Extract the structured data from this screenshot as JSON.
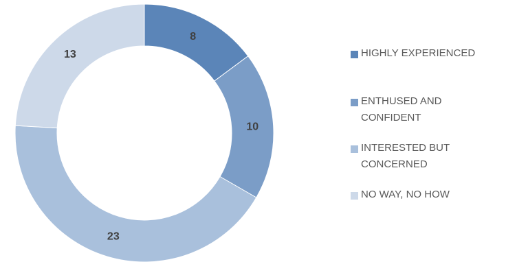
{
  "chart_data": {
    "type": "pie",
    "subtype": "donut",
    "categories": [
      "HIGHLY EXPERIENCED",
      "ENTHUSED AND CONFIDENT",
      "INTERESTED BUT CONCERNED",
      "NO WAY, NO HOW"
    ],
    "values": [
      8,
      10,
      23,
      13
    ],
    "colors": [
      "#5b85b8",
      "#7b9dc7",
      "#a9c0dc",
      "#cdd9e9"
    ],
    "legend_position": "right",
    "data_labels_shown": true
  }
}
